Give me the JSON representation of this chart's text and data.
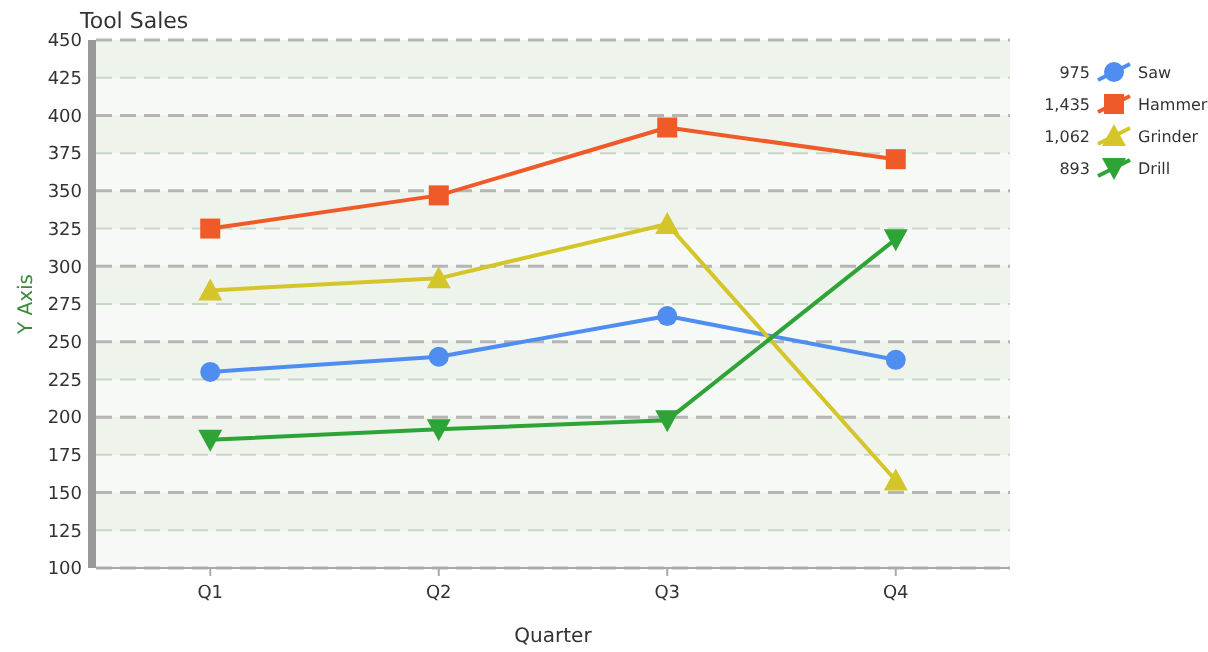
{
  "chart_data": {
    "type": "line",
    "title": "Tool Sales",
    "xlabel": "Quarter",
    "ylabel": "Y Axis",
    "categories": [
      "Q1",
      "Q2",
      "Q3",
      "Q4"
    ],
    "series": [
      {
        "name": "Saw",
        "color": "#4f8ef0",
        "marker": "circle",
        "values": [
          230,
          240,
          267,
          238
        ]
      },
      {
        "name": "Hammer",
        "color": "#f05a28",
        "marker": "square",
        "values": [
          325,
          347,
          392,
          371
        ]
      },
      {
        "name": "Grinder",
        "color": "#d4c62a",
        "marker": "triangle",
        "values": [
          284,
          292,
          328,
          158
        ]
      },
      {
        "name": "Drill",
        "color": "#2ea336",
        "marker": "triangle-down",
        "values": [
          185,
          192,
          198,
          318
        ]
      }
    ],
    "totals": [
      "975",
      "1,435",
      "1,062",
      "893"
    ],
    "ylim": [
      100,
      450
    ],
    "yticks": [
      100,
      125,
      150,
      175,
      200,
      225,
      250,
      275,
      300,
      325,
      350,
      375,
      400,
      425,
      450
    ],
    "grid": "y",
    "legend": "right"
  }
}
